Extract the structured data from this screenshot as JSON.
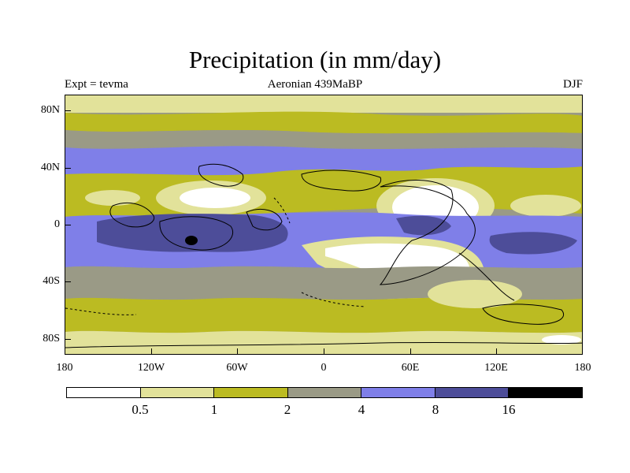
{
  "title": "Precipitation (in mm/day)",
  "subtitle_left": "Expt = tevma",
  "subtitle_center": "Aeronian 439MaBP",
  "subtitle_right": "DJF",
  "lat_labels": [
    "80N",
    "40N",
    "0",
    "40S",
    "80S"
  ],
  "lon_labels": [
    "180",
    "120W",
    "60W",
    "0",
    "60E",
    "120E",
    "180"
  ],
  "colorbar": {
    "levels": [
      "0.5",
      "1",
      "2",
      "4",
      "8",
      "16"
    ],
    "colors": [
      "#ffffff",
      "#e2e29a",
      "#bbbb22",
      "#9a9a86",
      "#7f7fe8",
      "#4d4d99",
      "#000000"
    ]
  },
  "map_colors": {
    "white": "#ffffff",
    "light": "#e2e29a",
    "olive": "#bbbb22",
    "gray": "#9a9a86",
    "blue": "#7f7fe8",
    "dark": "#4d4d99",
    "black": "#000000"
  }
}
